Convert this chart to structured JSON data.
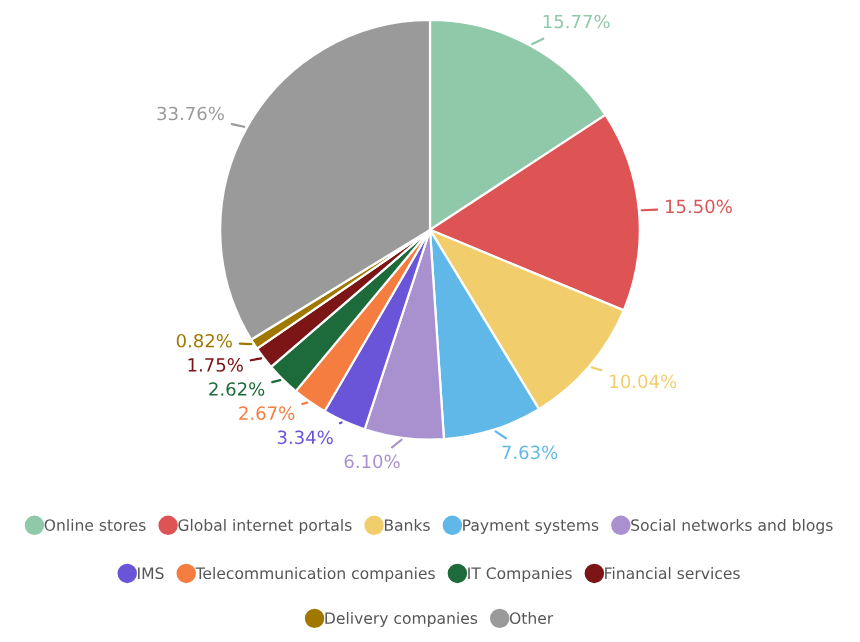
{
  "chart_data": {
    "type": "pie",
    "categories": [
      "Online stores",
      "Global internet portals",
      "Banks",
      "Payment systems",
      "Social networks and blogs",
      "IMS",
      "Telecommunication companies",
      "IT Companies",
      "Financial services",
      "Delivery companies",
      "Other"
    ],
    "values": [
      15.77,
      15.5,
      10.04,
      7.63,
      6.1,
      3.34,
      2.67,
      2.62,
      1.75,
      0.82,
      33.76
    ],
    "value_labels": [
      "15.77%",
      "15.50%",
      "10.04%",
      "7.63%",
      "6.10%",
      "3.34%",
      "2.67%",
      "2.62%",
      "1.75%",
      "0.82%",
      "33.76%"
    ],
    "colors": [
      "#8fc9a9",
      "#de5454",
      "#f1cd6b",
      "#5fb8e8",
      "#a991cf",
      "#6a55d9",
      "#f47d3f",
      "#1d6b3a",
      "#7c1515",
      "#a07800",
      "#9a9a9a"
    ],
    "legend": "bottom"
  }
}
